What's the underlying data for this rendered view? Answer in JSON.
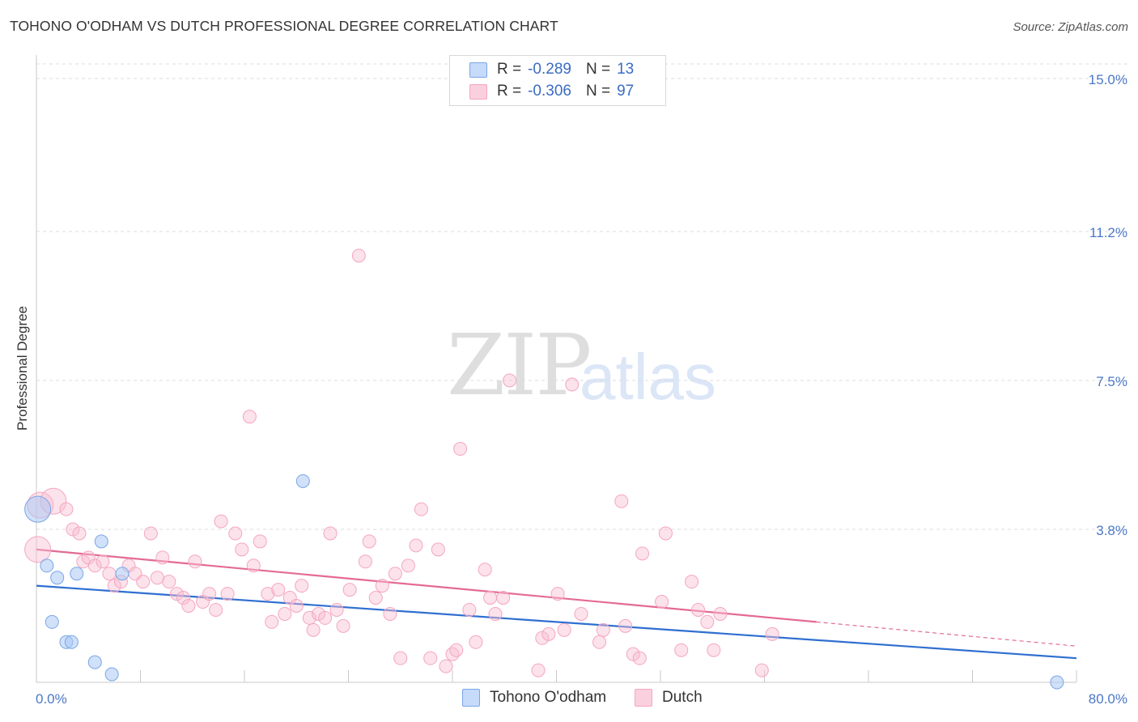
{
  "title": "TOHONO O'ODHAM VS DUTCH PROFESSIONAL DEGREE CORRELATION CHART",
  "source": "Source: ZipAtlas.com",
  "watermark": {
    "part1": "ZIP",
    "part2": "atlas"
  },
  "legend": {
    "rows": [
      {
        "r_label": "R =",
        "r_value": "-0.289",
        "n_label": "N =",
        "n_value": "13",
        "color": "#aecbf4"
      },
      {
        "r_label": "R =",
        "r_value": "-0.306",
        "n_label": "N =",
        "n_value": "97",
        "color": "#f8bfd2"
      }
    ]
  },
  "bottom_legend": [
    "Tohono O'odham",
    "Dutch"
  ],
  "chart_data": {
    "type": "scatter",
    "title": "TOHONO O'ODHAM VS DUTCH PROFESSIONAL DEGREE CORRELATION CHART",
    "xlabel": "",
    "ylabel": "Professional Degree",
    "xlim": [
      0,
      80
    ],
    "ylim": [
      0,
      15.5
    ],
    "x_tick_labels": [
      "0.0%",
      "80.0%"
    ],
    "y_ticks": [
      3.8,
      7.5,
      11.2,
      15.0
    ],
    "y_tick_labels": [
      "3.8%",
      "7.5%",
      "11.2%",
      "15.0%"
    ],
    "grid": true,
    "series": [
      {
        "name": "Tohono O'odham",
        "color": "#7aa6e6",
        "line_color": "#2f6fd0",
        "trend": {
          "x": [
            0,
            80
          ],
          "y": [
            2.4,
            0.6
          ]
        },
        "points": [
          {
            "x": 0.1,
            "y": 4.3,
            "big": true
          },
          {
            "x": 0.8,
            "y": 2.9
          },
          {
            "x": 1.2,
            "y": 1.5
          },
          {
            "x": 1.6,
            "y": 2.6
          },
          {
            "x": 2.3,
            "y": 1.0
          },
          {
            "x": 2.7,
            "y": 1.0
          },
          {
            "x": 3.1,
            "y": 2.7
          },
          {
            "x": 4.5,
            "y": 0.5
          },
          {
            "x": 5.0,
            "y": 3.5
          },
          {
            "x": 5.8,
            "y": 0.2
          },
          {
            "x": 6.6,
            "y": 2.7
          },
          {
            "x": 20.5,
            "y": 5.0
          },
          {
            "x": 78.5,
            "y": 0.0
          }
        ]
      },
      {
        "name": "Dutch",
        "color": "#f4a6c0",
        "line_color": "#e46a95",
        "trend": {
          "x": [
            0,
            60
          ],
          "y": [
            3.3,
            1.5
          ]
        },
        "trend_dashed": {
          "x": [
            60,
            80
          ],
          "y": [
            1.5,
            0.9
          ]
        },
        "points": [
          {
            "x": 0.3,
            "y": 4.4,
            "big": true
          },
          {
            "x": 0.1,
            "y": 3.3,
            "big": true
          },
          {
            "x": 1.3,
            "y": 4.5,
            "big": true
          },
          {
            "x": 2.3,
            "y": 4.3
          },
          {
            "x": 2.8,
            "y": 3.8
          },
          {
            "x": 3.3,
            "y": 3.7
          },
          {
            "x": 3.6,
            "y": 3.0
          },
          {
            "x": 4.0,
            "y": 3.1
          },
          {
            "x": 4.5,
            "y": 2.9
          },
          {
            "x": 5.1,
            "y": 3.0
          },
          {
            "x": 5.6,
            "y": 2.7
          },
          {
            "x": 6.0,
            "y": 2.4
          },
          {
            "x": 6.5,
            "y": 2.5
          },
          {
            "x": 7.1,
            "y": 2.9
          },
          {
            "x": 7.6,
            "y": 2.7
          },
          {
            "x": 8.2,
            "y": 2.5
          },
          {
            "x": 8.8,
            "y": 3.7
          },
          {
            "x": 9.3,
            "y": 2.6
          },
          {
            "x": 9.7,
            "y": 3.1
          },
          {
            "x": 10.2,
            "y": 2.5
          },
          {
            "x": 10.8,
            "y": 2.2
          },
          {
            "x": 11.3,
            "y": 2.1
          },
          {
            "x": 11.7,
            "y": 1.9
          },
          {
            "x": 12.2,
            "y": 3.0
          },
          {
            "x": 12.8,
            "y": 2.0
          },
          {
            "x": 13.3,
            "y": 2.2
          },
          {
            "x": 13.8,
            "y": 1.8
          },
          {
            "x": 14.2,
            "y": 4.0
          },
          {
            "x": 14.7,
            "y": 2.2
          },
          {
            "x": 15.3,
            "y": 3.7
          },
          {
            "x": 15.8,
            "y": 3.3
          },
          {
            "x": 16.4,
            "y": 6.6
          },
          {
            "x": 16.7,
            "y": 2.9
          },
          {
            "x": 17.2,
            "y": 3.5
          },
          {
            "x": 17.8,
            "y": 2.2
          },
          {
            "x": 18.1,
            "y": 1.5
          },
          {
            "x": 18.6,
            "y": 2.3
          },
          {
            "x": 19.1,
            "y": 1.7
          },
          {
            "x": 19.5,
            "y": 2.1
          },
          {
            "x": 20.0,
            "y": 1.9
          },
          {
            "x": 20.4,
            "y": 2.4
          },
          {
            "x": 21.0,
            "y": 1.6
          },
          {
            "x": 21.3,
            "y": 1.3
          },
          {
            "x": 21.7,
            "y": 1.7
          },
          {
            "x": 22.2,
            "y": 1.6
          },
          {
            "x": 22.6,
            "y": 3.7
          },
          {
            "x": 23.1,
            "y": 1.8
          },
          {
            "x": 23.6,
            "y": 1.4
          },
          {
            "x": 24.1,
            "y": 2.3
          },
          {
            "x": 24.8,
            "y": 10.6
          },
          {
            "x": 25.3,
            "y": 3.0
          },
          {
            "x": 25.6,
            "y": 3.5
          },
          {
            "x": 26.1,
            "y": 2.1
          },
          {
            "x": 26.6,
            "y": 2.4
          },
          {
            "x": 27.2,
            "y": 1.7
          },
          {
            "x": 27.6,
            "y": 2.7
          },
          {
            "x": 28.0,
            "y": 0.6
          },
          {
            "x": 28.6,
            "y": 2.9
          },
          {
            "x": 29.2,
            "y": 3.4
          },
          {
            "x": 29.6,
            "y": 4.3
          },
          {
            "x": 30.3,
            "y": 0.6
          },
          {
            "x": 30.9,
            "y": 3.3
          },
          {
            "x": 31.5,
            "y": 0.4
          },
          {
            "x": 32.0,
            "y": 0.7
          },
          {
            "x": 32.3,
            "y": 0.8
          },
          {
            "x": 32.6,
            "y": 5.8
          },
          {
            "x": 33.3,
            "y": 1.8
          },
          {
            "x": 33.8,
            "y": 1.0
          },
          {
            "x": 34.5,
            "y": 2.8
          },
          {
            "x": 34.9,
            "y": 2.1
          },
          {
            "x": 35.3,
            "y": 1.7
          },
          {
            "x": 35.9,
            "y": 2.1
          },
          {
            "x": 36.4,
            "y": 7.5
          },
          {
            "x": 38.6,
            "y": 0.3
          },
          {
            "x": 38.9,
            "y": 1.1
          },
          {
            "x": 39.4,
            "y": 1.2
          },
          {
            "x": 40.1,
            "y": 2.2
          },
          {
            "x": 40.6,
            "y": 1.3
          },
          {
            "x": 41.2,
            "y": 7.4
          },
          {
            "x": 41.9,
            "y": 1.7
          },
          {
            "x": 43.3,
            "y": 1.0
          },
          {
            "x": 43.6,
            "y": 1.3
          },
          {
            "x": 45.0,
            "y": 4.5
          },
          {
            "x": 45.3,
            "y": 1.4
          },
          {
            "x": 45.9,
            "y": 0.7
          },
          {
            "x": 46.4,
            "y": 0.6
          },
          {
            "x": 46.6,
            "y": 3.2
          },
          {
            "x": 48.1,
            "y": 2.0
          },
          {
            "x": 48.4,
            "y": 3.7
          },
          {
            "x": 49.6,
            "y": 0.8
          },
          {
            "x": 50.4,
            "y": 2.5
          },
          {
            "x": 50.9,
            "y": 1.8
          },
          {
            "x": 51.6,
            "y": 1.5
          },
          {
            "x": 52.1,
            "y": 0.8
          },
          {
            "x": 52.6,
            "y": 1.7
          },
          {
            "x": 55.8,
            "y": 0.3
          },
          {
            "x": 56.6,
            "y": 1.2
          }
        ]
      }
    ]
  }
}
